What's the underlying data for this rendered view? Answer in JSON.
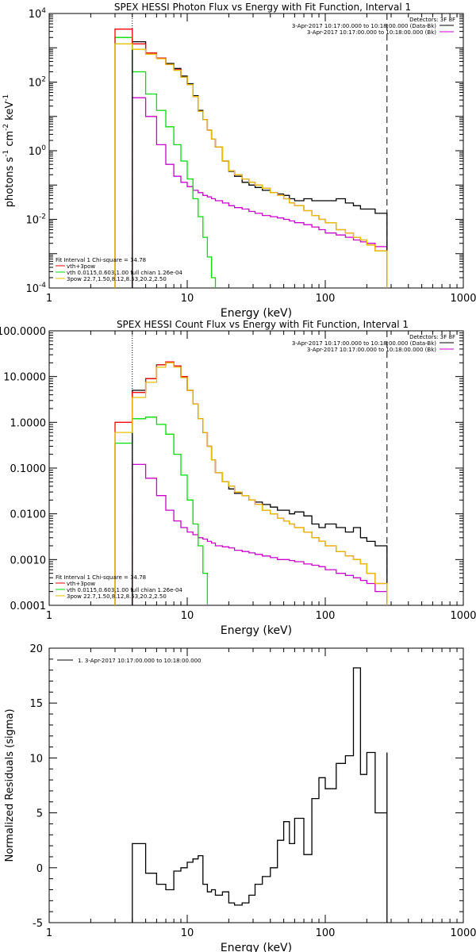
{
  "chart_data": [
    {
      "type": "line",
      "title": "SPEX HESSI Photon Flux vs Energy with Fit Function, Interval 1",
      "xlabel": "Energy (keV)",
      "ylabel": "photons s^-1 cm^-2 keV^-1",
      "xscale": "log",
      "yscale": "log",
      "xlim": [
        1,
        1000
      ],
      "ylim": [
        0.0001,
        10000
      ],
      "xticks": [
        "1",
        "10",
        "100",
        "1000"
      ],
      "yticks": [
        "10^-4",
        "10^-2",
        "10^0",
        "10^2",
        "10^4"
      ],
      "ylabel_parts": [
        "photons s",
        "-1",
        " cm",
        "-2",
        " keV",
        "-1"
      ],
      "detectors": "Detectors: 3F 8F",
      "legend_top": [
        {
          "label": "3-Apr-2017 10:17:00.000 to 10:18:00.000 (Data-Bk)",
          "color": "#000000"
        },
        {
          "label": "3-Apr-2017 10:17:00.000 to 10:18:00.000 (Bk)",
          "color": "#cc00cc"
        }
      ],
      "fit_info": "Fit Interval 1     Chi-square = 34.78",
      "legend_bottom": [
        {
          "label": "vth+3pow",
          "color": "#ff0000"
        },
        {
          "label": "vth 0.0115,0.603,1.00  full chian 1.26e-04",
          "color": "#00dd00"
        },
        {
          "label": "3pow 22.7,1.50,8.12,8.53,20.2,2.50",
          "color": "#e6c000"
        }
      ],
      "dotted_line_x": 4,
      "dashed_line_x": 280,
      "series": [
        {
          "name": "data",
          "color": "#000000",
          "step": true,
          "x": [
            4,
            5,
            6,
            7,
            8,
            9,
            10,
            11,
            12,
            13,
            14,
            15,
            16,
            18,
            20,
            22,
            25,
            28,
            31,
            35,
            40,
            45,
            50,
            55,
            60,
            70,
            80,
            90,
            100,
            120,
            140,
            160,
            180,
            200,
            230,
            280
          ],
          "y": [
            1500,
            700,
            500,
            350,
            250,
            150,
            90,
            40,
            15,
            8,
            4,
            2.2,
            1.3,
            0.5,
            0.25,
            0.18,
            0.12,
            0.1,
            0.085,
            0.07,
            0.06,
            0.055,
            0.05,
            0.04,
            0.035,
            0.04,
            0.035,
            0.035,
            0.035,
            0.04,
            0.03,
            0.025,
            0.02,
            0.02,
            0.015,
            0.015
          ]
        },
        {
          "name": "vth+3pow",
          "color": "#ff0000",
          "step": true,
          "x": [
            3,
            4,
            5,
            6,
            7,
            8,
            9,
            10,
            11,
            12,
            13,
            14,
            15,
            16,
            18,
            20,
            22,
            25,
            28,
            31,
            35,
            40,
            45,
            50,
            55,
            60,
            70,
            80,
            90,
            100,
            120,
            140,
            160,
            180,
            200,
            230,
            280
          ],
          "y": [
            3500,
            1300,
            700,
            500,
            330,
            230,
            140,
            85,
            38,
            14,
            8,
            4,
            2.2,
            1.3,
            0.5,
            0.26,
            0.2,
            0.15,
            0.12,
            0.1,
            0.08,
            0.06,
            0.05,
            0.04,
            0.03,
            0.025,
            0.018,
            0.013,
            0.01,
            0.008,
            0.005,
            0.004,
            0.003,
            0.0025,
            0.0018,
            0.0012,
            0.0012
          ]
        },
        {
          "name": "vth",
          "color": "#00dd00",
          "step": true,
          "x": [
            3,
            4,
            5,
            6,
            7,
            8,
            9,
            10,
            11,
            12,
            13,
            14,
            15,
            16
          ],
          "y": [
            2000,
            200,
            45,
            15,
            5,
            1.5,
            0.5,
            0.15,
            0.04,
            0.012,
            0.003,
            0.0008,
            0.0002,
            0.0001
          ]
        },
        {
          "name": "3pow",
          "color": "#e6c000",
          "step": true,
          "x": [
            3,
            4,
            5,
            6,
            7,
            8,
            9,
            10,
            11,
            12,
            13,
            14,
            15,
            16,
            18,
            20,
            22,
            25,
            28,
            31,
            35,
            40,
            45,
            50,
            55,
            60,
            70,
            80,
            90,
            100,
            120,
            140,
            160,
            180,
            200,
            230,
            280
          ],
          "y": [
            1300,
            900,
            650,
            480,
            330,
            220,
            140,
            85,
            38,
            14,
            8,
            4,
            2.2,
            1.3,
            0.5,
            0.26,
            0.2,
            0.15,
            0.12,
            0.1,
            0.08,
            0.06,
            0.05,
            0.04,
            0.03,
            0.025,
            0.018,
            0.013,
            0.01,
            0.008,
            0.005,
            0.004,
            0.003,
            0.0025,
            0.0018,
            0.0012,
            0.0012
          ]
        },
        {
          "name": "background",
          "color": "#cc00cc",
          "step": true,
          "x": [
            4,
            5,
            6,
            7,
            8,
            9,
            10,
            11,
            12,
            13,
            14,
            15,
            16,
            18,
            20,
            22,
            25,
            28,
            31,
            35,
            40,
            45,
            50,
            55,
            60,
            70,
            80,
            90,
            100,
            120,
            140,
            160,
            180,
            200,
            230,
            280
          ],
          "y": [
            35,
            10,
            1.5,
            0.4,
            0.18,
            0.12,
            0.09,
            0.07,
            0.06,
            0.05,
            0.045,
            0.04,
            0.035,
            0.03,
            0.025,
            0.022,
            0.02,
            0.017,
            0.015,
            0.013,
            0.012,
            0.011,
            0.01,
            0.009,
            0.008,
            0.007,
            0.006,
            0.005,
            0.004,
            0.0035,
            0.003,
            0.0025,
            0.0022,
            0.002,
            0.0016,
            0.0012
          ]
        }
      ]
    },
    {
      "type": "line",
      "title": "SPEX HESSI Count Flux vs Energy with Fit Function, Interval 1",
      "xlabel": "Energy (keV)",
      "xscale": "log",
      "yscale": "log",
      "xlim": [
        1,
        1000
      ],
      "ylim": [
        0.0001,
        100
      ],
      "xticks": [
        "1",
        "10",
        "100",
        "1000"
      ],
      "yticks": [
        "0.0001",
        "0.0010",
        "0.0100",
        "0.1000",
        "1.0000",
        "10.0000",
        "100.0000"
      ],
      "detectors": "Detectors: 3F 8F",
      "legend_top": [
        {
          "label": "3-Apr-2017 10:17:00.000 to 10:18:00.000 (Data-Bk)",
          "color": "#000000"
        },
        {
          "label": "3-Apr-2017 10:17:00.000 to 10:18:00.000 (Bk)",
          "color": "#cc00cc"
        }
      ],
      "fit_info": "Fit Interval 1     Chi-square = 34.78",
      "legend_bottom": [
        {
          "label": "vth+3pow",
          "color": "#ff0000"
        },
        {
          "label": "vth 0.0115,0.603,1.00  full chian 1.26e-04",
          "color": "#00dd00"
        },
        {
          "label": "3pow 22.7,1.50,8.12,8.53,20.2,2.50",
          "color": "#e6c000"
        }
      ],
      "dotted_line_x": 4,
      "dashed_line_x": 280,
      "series": [
        {
          "name": "data",
          "color": "#000000",
          "step": true,
          "x": [
            4,
            5,
            6,
            7,
            8,
            9,
            10,
            11,
            12,
            13,
            14,
            15,
            16,
            18,
            20,
            22,
            25,
            28,
            31,
            35,
            40,
            45,
            50,
            55,
            60,
            70,
            80,
            90,
            100,
            120,
            140,
            160,
            180,
            200,
            230,
            280
          ],
          "y": [
            5,
            9,
            18,
            21,
            17,
            10,
            5,
            2.5,
            1.2,
            0.6,
            0.3,
            0.15,
            0.08,
            0.05,
            0.035,
            0.028,
            0.025,
            0.02,
            0.018,
            0.016,
            0.014,
            0.012,
            0.012,
            0.01,
            0.011,
            0.009,
            0.006,
            0.005,
            0.006,
            0.005,
            0.004,
            0.005,
            0.003,
            0.0025,
            0.002,
            0.002
          ]
        },
        {
          "name": "vth+3pow",
          "color": "#ff0000",
          "step": true,
          "x": [
            3,
            4,
            5,
            6,
            7,
            8,
            9,
            10,
            11,
            12,
            13,
            14,
            15,
            16,
            18,
            20,
            22,
            25,
            28,
            31,
            35,
            40,
            45,
            50,
            55,
            60,
            70,
            80,
            90,
            100,
            120,
            140,
            160,
            180,
            200,
            230,
            280
          ],
          "y": [
            1.0,
            4.5,
            9,
            18,
            21,
            17,
            10,
            5,
            2.5,
            1.2,
            0.6,
            0.3,
            0.15,
            0.08,
            0.05,
            0.04,
            0.03,
            0.025,
            0.02,
            0.016,
            0.012,
            0.01,
            0.008,
            0.007,
            0.006,
            0.005,
            0.004,
            0.003,
            0.0025,
            0.002,
            0.0015,
            0.0012,
            0.001,
            0.0008,
            0.0005,
            0.0003,
            0.0001
          ]
        },
        {
          "name": "vth",
          "color": "#00dd00",
          "step": true,
          "x": [
            3,
            4,
            5,
            6,
            7,
            8,
            9,
            10,
            11,
            12,
            13,
            14
          ],
          "y": [
            0.35,
            1.2,
            1.3,
            0.9,
            0.55,
            0.2,
            0.07,
            0.02,
            0.006,
            0.002,
            0.0005,
            0.0001
          ]
        },
        {
          "name": "3pow",
          "color": "#e6c000",
          "step": true,
          "x": [
            3,
            4,
            5,
            6,
            7,
            8,
            9,
            10,
            11,
            12,
            13,
            14,
            15,
            16,
            18,
            20,
            22,
            25,
            28,
            31,
            35,
            40,
            45,
            50,
            55,
            60,
            70,
            80,
            90,
            100,
            120,
            140,
            160,
            180,
            200,
            230,
            280
          ],
          "y": [
            0.6,
            3.5,
            7.5,
            16,
            20,
            16,
            9.5,
            5,
            2.5,
            1.2,
            0.6,
            0.3,
            0.15,
            0.08,
            0.05,
            0.04,
            0.03,
            0.025,
            0.02,
            0.016,
            0.012,
            0.01,
            0.008,
            0.007,
            0.006,
            0.005,
            0.004,
            0.003,
            0.0025,
            0.002,
            0.0015,
            0.0012,
            0.001,
            0.0008,
            0.0005,
            0.0003,
            0.0001
          ]
        },
        {
          "name": "background",
          "color": "#cc00cc",
          "step": true,
          "x": [
            4,
            5,
            6,
            7,
            8,
            9,
            10,
            11,
            12,
            13,
            14,
            15,
            16,
            18,
            20,
            22,
            25,
            28,
            31,
            35,
            40,
            45,
            50,
            55,
            60,
            70,
            80,
            90,
            100,
            120,
            140,
            160,
            180,
            200,
            230,
            280
          ],
          "y": [
            0.12,
            0.06,
            0.025,
            0.012,
            0.007,
            0.005,
            0.004,
            0.0035,
            0.003,
            0.0028,
            0.0025,
            0.0023,
            0.002,
            0.0019,
            0.0018,
            0.0016,
            0.0015,
            0.0014,
            0.0013,
            0.0012,
            0.0011,
            0.001,
            0.001,
            0.00095,
            0.0009,
            0.0008,
            0.00075,
            0.0007,
            0.0006,
            0.0005,
            0.00045,
            0.0004,
            0.00035,
            0.0003,
            0.0002,
            0.0001
          ]
        }
      ]
    },
    {
      "type": "line",
      "title": "",
      "xlabel": "Energy (keV)",
      "ylabel": "Normalized Residuals (sigma)",
      "xscale": "log",
      "yscale": "linear",
      "xlim": [
        1,
        1000
      ],
      "ylim": [
        -5,
        20
      ],
      "xticks": [
        "1",
        "10",
        "100",
        "1000"
      ],
      "yticks": [
        "-5",
        "0",
        "5",
        "10",
        "15",
        "20"
      ],
      "legend_top": [
        {
          "label": "1.  3-Apr-2017 10:17:00.000 to 10:18:00.000",
          "color": "#000000"
        }
      ],
      "series": [
        {
          "name": "residuals",
          "color": "#000000",
          "step": true,
          "x": [
            4,
            5,
            6,
            7,
            8,
            9,
            10,
            11,
            12,
            13,
            14,
            15,
            16,
            18,
            20,
            22,
            25,
            28,
            31,
            35,
            40,
            45,
            50,
            55,
            60,
            70,
            80,
            90,
            100,
            120,
            140,
            160,
            180,
            200,
            230,
            280
          ],
          "y": [
            2.2,
            -0.5,
            -1.5,
            -2,
            -0.3,
            0,
            0.5,
            0.8,
            1.1,
            -1.5,
            -2.2,
            -2,
            -2.5,
            -2.2,
            -3.2,
            -3.4,
            -3.2,
            -2.5,
            -1.5,
            -0.8,
            0,
            2.5,
            4.2,
            2.2,
            4.5,
            1.2,
            6.3,
            8.2,
            7.2,
            9.5,
            10.2,
            18.2,
            8.5,
            10.5,
            5,
            10.5
          ]
        }
      ]
    }
  ]
}
